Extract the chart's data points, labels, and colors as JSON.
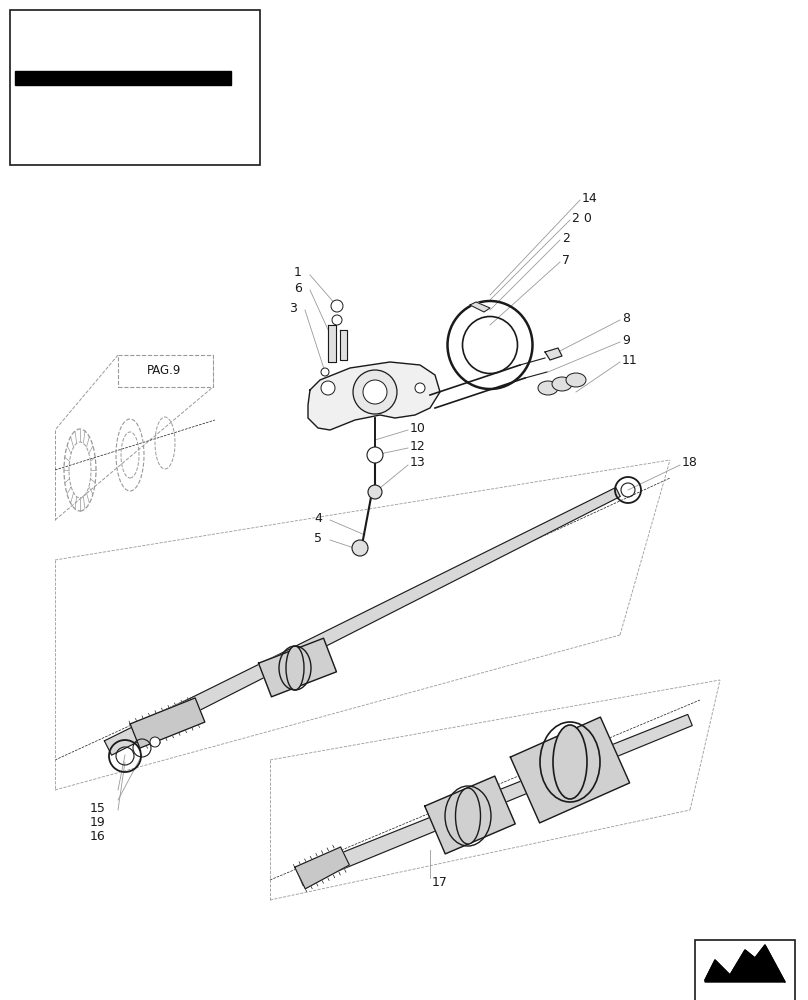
{
  "bg_color": "#ffffff",
  "line_color": "#1a1a1a",
  "gray1": "#bbbbbb",
  "gray2": "#999999",
  "gray3": "#666666",
  "fig_width": 8.08,
  "fig_height": 10.0,
  "dpi": 100
}
